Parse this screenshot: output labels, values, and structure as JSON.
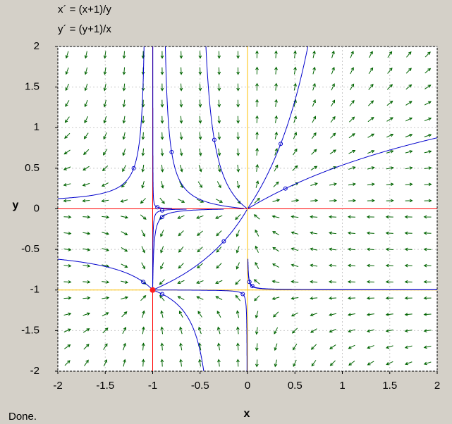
{
  "chart_data": {
    "type": "phase-plane",
    "equations": [
      "x´ = (x+1)/y",
      "y´ = (y+1)/x"
    ],
    "x_label": "x",
    "y_label": "y",
    "xlim": [
      -2,
      2
    ],
    "ylim": [
      -2,
      2
    ],
    "xticks": [
      -2,
      -1.5,
      -1,
      -0.5,
      0,
      0.5,
      1,
      1.5,
      2
    ],
    "yticks": [
      -2,
      -1.5,
      -1,
      -0.5,
      0,
      0.5,
      1,
      1.5,
      2
    ],
    "grid": true,
    "arrow_color": "#006400",
    "trajectory_color": "#0000cc",
    "nullclines": [
      {
        "axis": "x",
        "value": -1,
        "color": "#ff0000"
      },
      {
        "axis": "y",
        "value": 0,
        "color": "#ff0000"
      },
      {
        "axis": "x",
        "value": 0,
        "color": "#ffc000"
      },
      {
        "axis": "y",
        "value": -1,
        "color": "#ffc000"
      }
    ],
    "equilibrium": {
      "x": -1,
      "y": -1,
      "color": "#ff2020"
    }
  },
  "status": "Done."
}
